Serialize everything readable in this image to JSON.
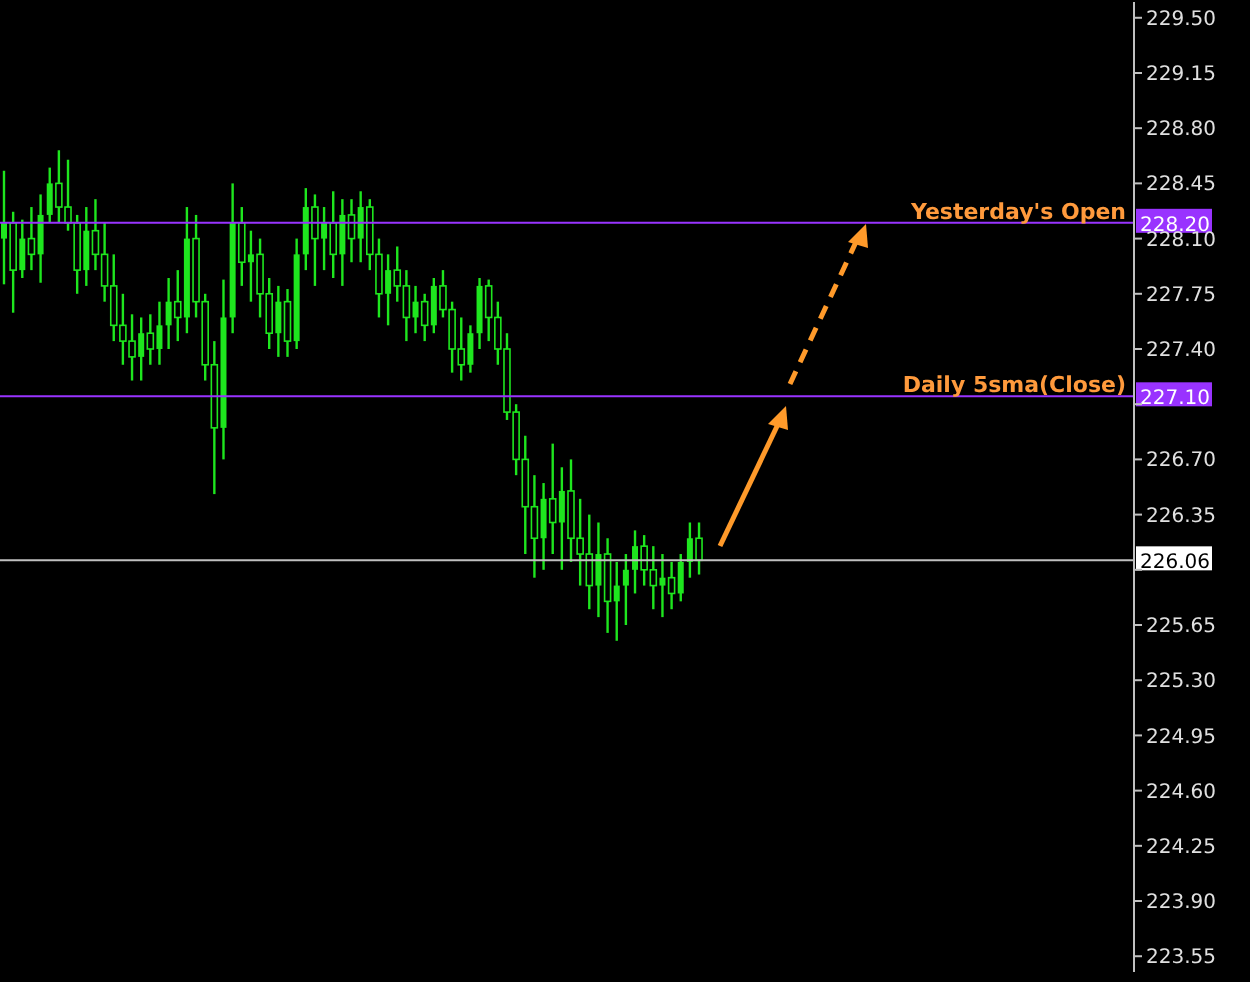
{
  "chart_data": {
    "type": "candlestick",
    "color": "#1ee61e",
    "tick_labels": "y",
    "categories": [
      null,
      null,
      null,
      null,
      null,
      null,
      null,
      null,
      null,
      null,
      null,
      null,
      null,
      null,
      null,
      null,
      null,
      null,
      null,
      null,
      null,
      null,
      null,
      null,
      null,
      null,
      null,
      null,
      null,
      null,
      null,
      null,
      null,
      null,
      null,
      null,
      null,
      null,
      null,
      null,
      null,
      null,
      null,
      null,
      null,
      null,
      null,
      null,
      null,
      null,
      null,
      null,
      null,
      null,
      null,
      null,
      null,
      null,
      null,
      null,
      null,
      null,
      null,
      null,
      null,
      null,
      null,
      null,
      null,
      null,
      null,
      null,
      null,
      null,
      null,
      null,
      null,
      null,
      null,
      null,
      null,
      null,
      null,
      null,
      null,
      null,
      null,
      null,
      null,
      null,
      null,
      null,
      null,
      null,
      null,
      null,
      null,
      null,
      null,
      null,
      null,
      null,
      null,
      null,
      null,
      null,
      null,
      null,
      null,
      null,
      null,
      null,
      null,
      null,
      null,
      null,
      null,
      null,
      null,
      null,
      null,
      null,
      null,
      null
    ],
    "ohlc": [
      [
        228.1,
        228.53,
        227.81,
        228.2
      ],
      [
        228.2,
        228.27,
        227.63,
        227.9
      ],
      [
        227.9,
        228.22,
        227.85,
        228.1
      ],
      [
        228.1,
        228.3,
        227.9,
        228.0
      ],
      [
        228.0,
        228.38,
        227.82,
        228.25
      ],
      [
        228.25,
        228.55,
        228.2,
        228.45
      ],
      [
        228.45,
        228.66,
        228.2,
        228.3
      ],
      [
        228.3,
        228.6,
        228.15,
        228.2
      ],
      [
        228.2,
        228.25,
        227.75,
        227.9
      ],
      [
        227.9,
        228.3,
        227.8,
        228.15
      ],
      [
        228.15,
        228.35,
        227.9,
        228.0
      ],
      [
        228.0,
        228.2,
        227.7,
        227.8
      ],
      [
        227.8,
        228.0,
        227.45,
        227.55
      ],
      [
        227.55,
        227.75,
        227.3,
        227.45
      ],
      [
        227.45,
        227.62,
        227.2,
        227.35
      ],
      [
        227.35,
        227.6,
        227.2,
        227.5
      ],
      [
        227.5,
        227.62,
        227.3,
        227.4
      ],
      [
        227.4,
        227.7,
        227.3,
        227.55
      ],
      [
        227.55,
        227.85,
        227.4,
        227.7
      ],
      [
        227.7,
        227.9,
        227.45,
        227.6
      ],
      [
        227.6,
        228.3,
        227.5,
        228.1
      ],
      [
        228.1,
        228.25,
        227.6,
        227.7
      ],
      [
        227.7,
        227.75,
        227.2,
        227.3
      ],
      [
        227.3,
        227.45,
        226.48,
        226.9
      ],
      [
        226.9,
        227.84,
        226.7,
        227.6
      ],
      [
        227.6,
        228.45,
        227.5,
        228.2
      ],
      [
        228.2,
        228.3,
        227.8,
        227.95
      ],
      [
        227.95,
        228.15,
        227.7,
        228.0
      ],
      [
        228.0,
        228.1,
        227.6,
        227.75
      ],
      [
        227.75,
        227.85,
        227.4,
        227.5
      ],
      [
        227.5,
        227.8,
        227.35,
        227.7
      ],
      [
        227.7,
        227.78,
        227.35,
        227.45
      ],
      [
        227.45,
        228.1,
        227.4,
        228.0
      ],
      [
        228.0,
        228.42,
        227.9,
        228.3
      ],
      [
        228.3,
        228.38,
        227.8,
        228.1
      ],
      [
        228.1,
        228.3,
        227.9,
        228.2
      ],
      [
        228.2,
        228.4,
        227.85,
        228.0
      ],
      [
        228.0,
        228.35,
        227.8,
        228.25
      ],
      [
        228.25,
        228.35,
        227.95,
        228.1
      ],
      [
        228.1,
        228.4,
        227.95,
        228.3
      ],
      [
        228.3,
        228.35,
        227.9,
        228.0
      ],
      [
        228.0,
        228.1,
        227.6,
        227.75
      ],
      [
        227.75,
        228.0,
        227.55,
        227.9
      ],
      [
        227.9,
        228.05,
        227.7,
        227.8
      ],
      [
        227.8,
        227.9,
        227.45,
        227.6
      ],
      [
        227.6,
        227.8,
        227.5,
        227.7
      ],
      [
        227.7,
        227.75,
        227.45,
        227.55
      ],
      [
        227.55,
        227.85,
        227.5,
        227.8
      ],
      [
        227.8,
        227.9,
        227.6,
        227.65
      ],
      [
        227.65,
        227.7,
        227.25,
        227.4
      ],
      [
        227.4,
        227.6,
        227.2,
        227.3
      ],
      [
        227.3,
        227.55,
        227.25,
        227.5
      ],
      [
        227.5,
        227.85,
        227.4,
        227.8
      ],
      [
        227.8,
        227.84,
        227.45,
        227.6
      ],
      [
        227.6,
        227.7,
        227.3,
        227.4
      ],
      [
        227.4,
        227.5,
        226.95,
        227.0
      ],
      [
        227.0,
        227.05,
        226.6,
        226.7
      ],
      [
        226.7,
        226.85,
        226.1,
        226.4
      ],
      [
        226.4,
        226.6,
        225.95,
        226.2
      ],
      [
        226.2,
        226.55,
        226.0,
        226.45
      ],
      [
        226.45,
        226.8,
        226.1,
        226.3
      ],
      [
        226.3,
        226.65,
        226.0,
        226.5
      ],
      [
        226.5,
        226.7,
        226.05,
        226.2
      ],
      [
        226.2,
        226.45,
        225.9,
        226.1
      ],
      [
        226.1,
        226.35,
        225.75,
        225.9
      ],
      [
        225.9,
        226.3,
        225.7,
        226.1
      ],
      [
        226.1,
        226.2,
        225.6,
        225.8
      ],
      [
        225.8,
        226.05,
        225.55,
        225.9
      ],
      [
        225.9,
        226.1,
        225.65,
        226.0
      ],
      [
        226.0,
        226.25,
        225.85,
        226.15
      ],
      [
        226.15,
        226.22,
        225.9,
        226.0
      ],
      [
        226.0,
        226.15,
        225.75,
        225.9
      ],
      [
        225.9,
        226.1,
        225.7,
        225.95
      ],
      [
        225.95,
        226.05,
        225.75,
        225.85
      ],
      [
        225.85,
        226.1,
        225.8,
        226.05
      ],
      [
        226.05,
        226.3,
        225.95,
        226.2
      ],
      [
        226.2,
        226.3,
        225.97,
        226.06
      ],
      null,
      null,
      null,
      null,
      null,
      null,
      null,
      null,
      null,
      null,
      null,
      null,
      null,
      null,
      null,
      null,
      null,
      null,
      null,
      null,
      null,
      null,
      null,
      null,
      null,
      null,
      null,
      null,
      null,
      null,
      null,
      null,
      null,
      null,
      null,
      null,
      null,
      null,
      null,
      null,
      null,
      null,
      null,
      null,
      null,
      null,
      null
    ],
    "ylim": [
      223.45,
      229.6
    ],
    "yticks": [
      {
        "value": 229.5,
        "label": "229.50"
      },
      229.15,
      {
        "value": 228.8,
        "label": "228.80"
      },
      228.45,
      {
        "value": 228.1,
        "label": "228.10"
      },
      227.75,
      {
        "value": 227.4,
        "label": "227.40"
      },
      {
        "value": 227.05,
        "label": null
      },
      {
        "value": 226.7,
        "label": "226.70"
      },
      226.35,
      {
        "value": 226.0,
        "label": null
      },
      225.65,
      {
        "value": 225.3,
        "label": "225.30"
      },
      224.95,
      {
        "value": 224.6,
        "label": "224.60"
      },
      224.25,
      {
        "value": 223.9,
        "label": "223.90"
      },
      223.55
    ],
    "ref_lines": [
      {
        "axis": "y",
        "value": 228.2,
        "label": "Yesterday's Open",
        "color": "#9933ff"
      },
      {
        "axis": "y",
        "value": 227.1,
        "label": "Daily 5sma(Close)",
        "color": "#9933ff"
      },
      {
        "axis": "y",
        "value": 226.06,
        "label": null,
        "color": "#c0c0c0"
      }
    ],
    "annotations": [
      {
        "text": "228.20",
        "y": 228.2
      },
      {
        "text": "227.10",
        "y": 227.1
      },
      {
        "text": "226.06",
        "y": 226.06
      }
    ]
  }
}
